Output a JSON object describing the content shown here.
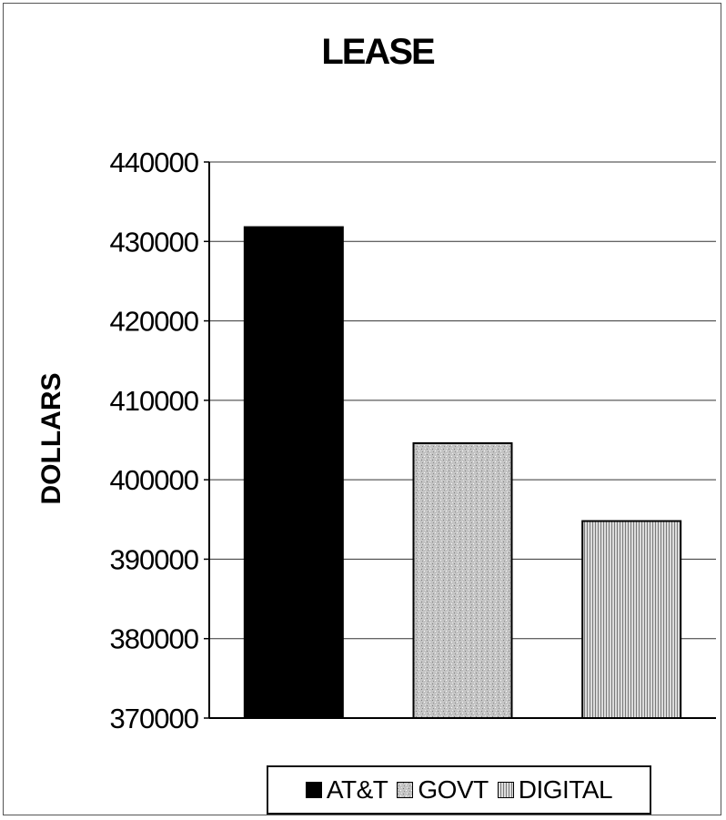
{
  "chart_data": {
    "type": "bar",
    "title": "LEASE",
    "ylabel": "DOLLARS",
    "xlabel": "",
    "ylim": [
      370000,
      440000
    ],
    "yticks": [
      "440000",
      "430000",
      "420000",
      "410000",
      "400000",
      "390000",
      "380000",
      "370000"
    ],
    "categories": [
      "AT&T",
      "GOVT",
      "DIGITAL"
    ],
    "values": [
      431800,
      404600,
      394800
    ],
    "grid": true,
    "legend_position": "bottom",
    "colors": {
      "AT&T": "#000000",
      "GOVT": "#c4c4c4",
      "DIGITAL": "#a9a9a9"
    },
    "patterns": {
      "AT&T": "solid",
      "GOVT": "speckled",
      "DIGITAL": "vertical-stripes"
    }
  }
}
